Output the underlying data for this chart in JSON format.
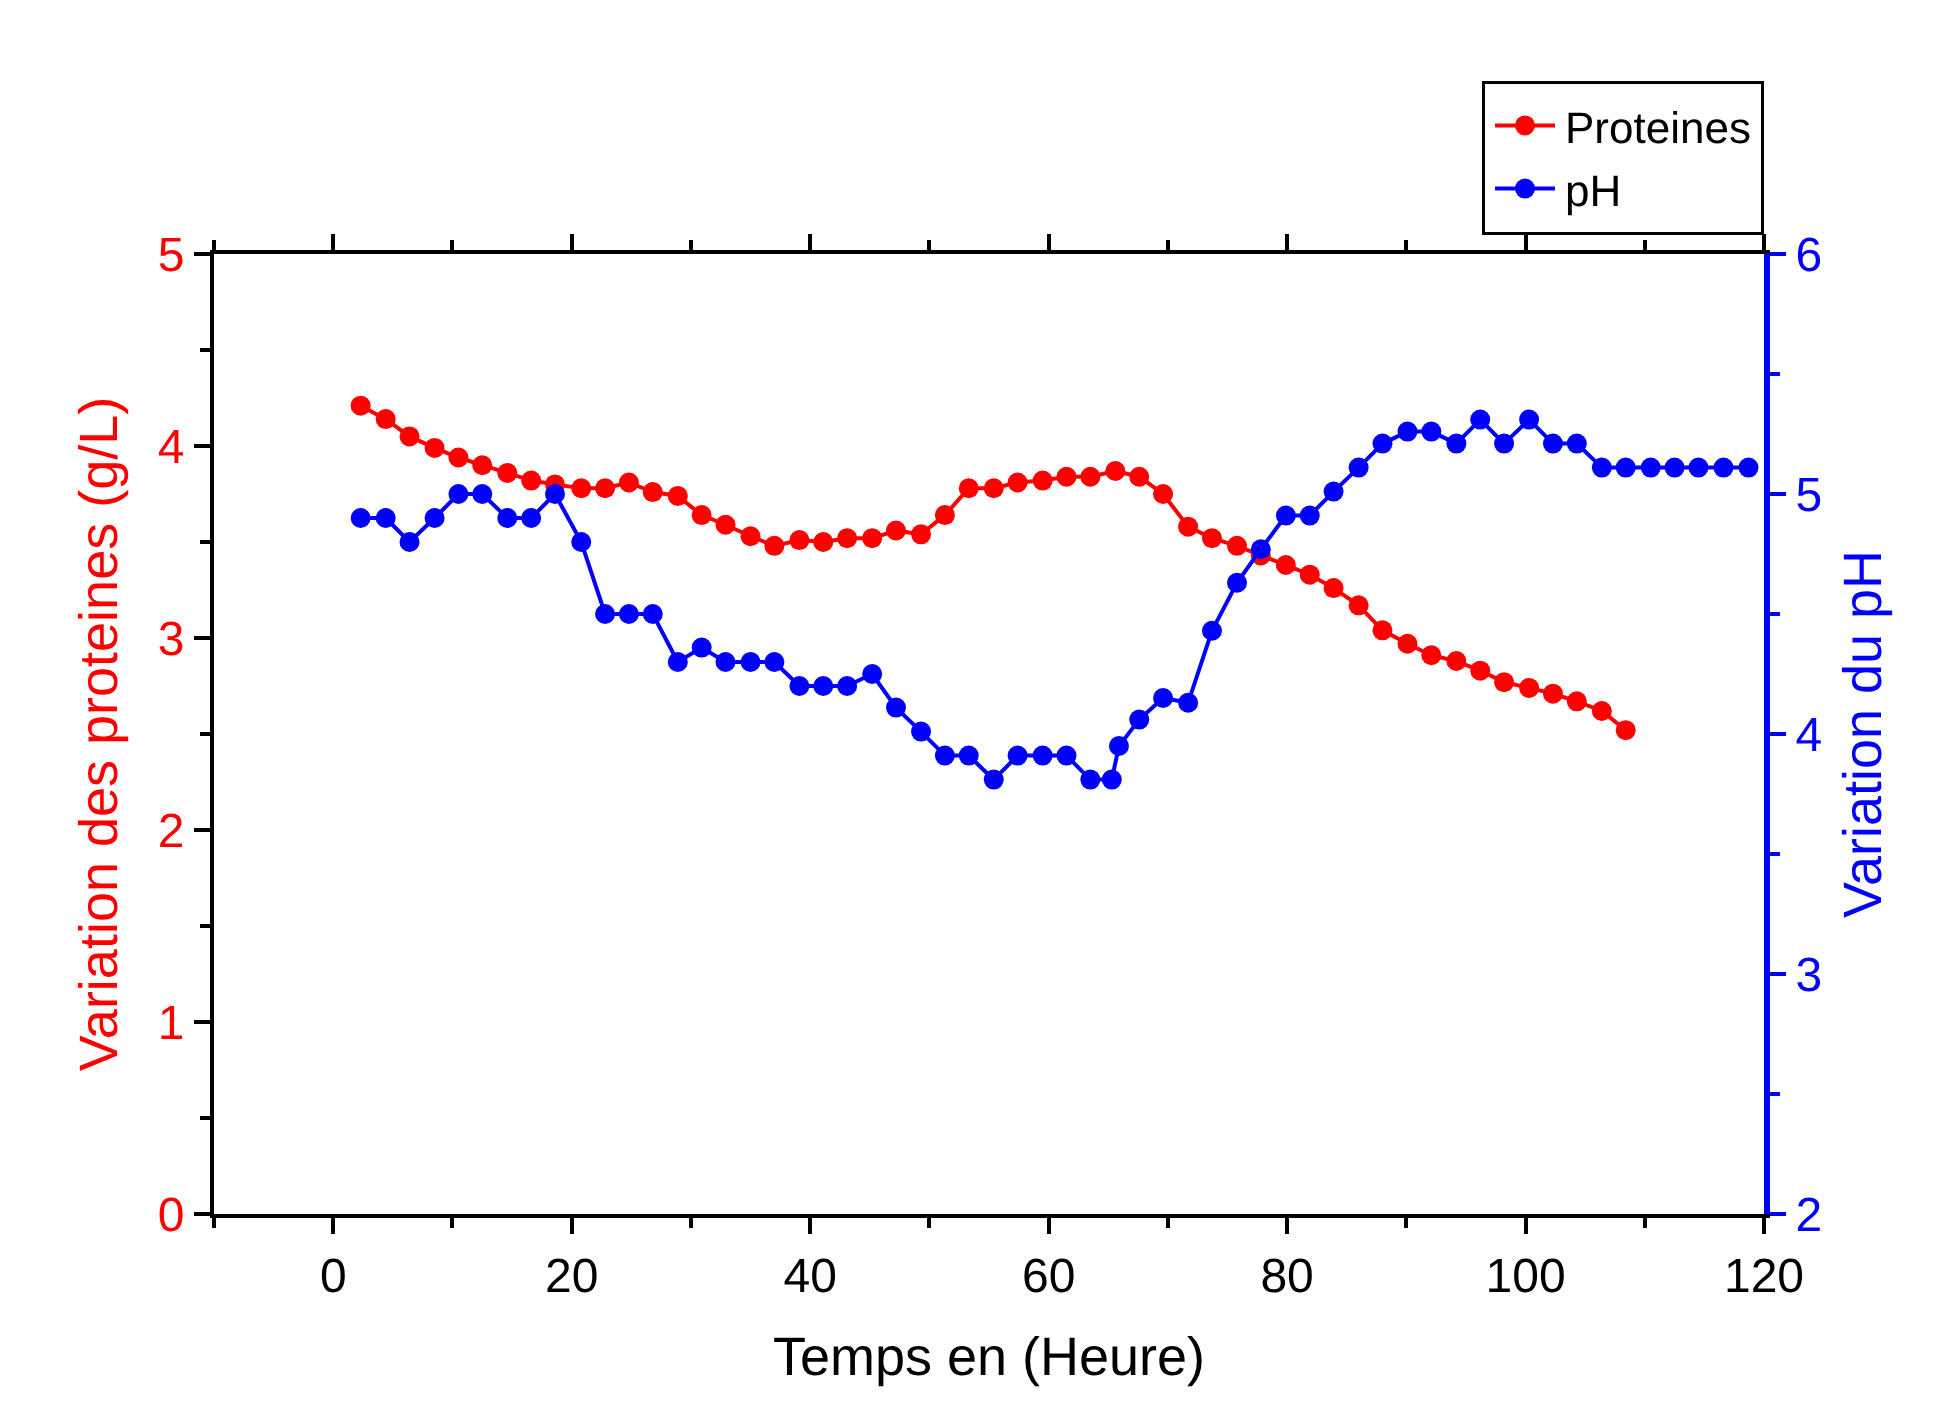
{
  "chart_data": {
    "type": "line",
    "xlabel": "Temps en (Heure)",
    "ylabel": "Variation des proteines (g/L)",
    "y2label": "Variation du pH",
    "xlim": [
      -10,
      120
    ],
    "xticks": [
      0,
      20,
      40,
      60,
      80,
      100,
      120
    ],
    "ylim": [
      0,
      5
    ],
    "yticks": [
      0,
      1,
      2,
      3,
      4,
      5
    ],
    "y2lim": [
      2,
      6
    ],
    "y2ticks": [
      2,
      3,
      4,
      5,
      6
    ],
    "legend": "top right",
    "marker": "circle",
    "line_style": "solid",
    "series": [
      {
        "name": "Proteines",
        "color": "#ff0000",
        "x": [
          2.3,
          4.4,
          6.4,
          8.5,
          10.5,
          12.5,
          14.6,
          16.6,
          18.6,
          20.8,
          22.8,
          24.8,
          26.8,
          28.9,
          30.9,
          32.9,
          35.0,
          37.0,
          39.1,
          41.1,
          43.1,
          45.2,
          47.2,
          49.3,
          51.3,
          53.3,
          55.4,
          57.4,
          59.5,
          61.5,
          63.5,
          65.6,
          67.6,
          69.6,
          71.7,
          73.7,
          75.8,
          77.8,
          79.9,
          81.9,
          83.9,
          86.0,
          88.0,
          90.1,
          92.1,
          94.2,
          96.2,
          98.2,
          100.3,
          102.3,
          104.3,
          106.4,
          108.4
        ],
        "values": [
          4.21,
          4.14,
          4.05,
          3.99,
          3.94,
          3.9,
          3.86,
          3.82,
          3.8,
          3.78,
          3.78,
          3.81,
          3.76,
          3.74,
          3.64,
          3.59,
          3.53,
          3.48,
          3.51,
          3.5,
          3.52,
          3.52,
          3.56,
          3.54,
          3.64,
          3.78,
          3.78,
          3.81,
          3.82,
          3.84,
          3.84,
          3.87,
          3.84,
          3.75,
          3.58,
          3.52,
          3.48,
          3.43,
          3.38,
          3.33,
          3.26,
          3.17,
          3.04,
          2.97,
          2.91,
          2.88,
          2.83,
          2.77,
          2.74,
          2.71,
          2.67,
          2.62,
          2.52
        ]
      },
      {
        "name": "pH",
        "color": "#0000ff",
        "axis": "y2",
        "x": [
          2.3,
          4.4,
          6.4,
          8.5,
          10.5,
          12.5,
          14.6,
          16.6,
          18.6,
          20.8,
          22.8,
          24.8,
          26.8,
          28.9,
          30.9,
          32.9,
          35.0,
          37.0,
          39.1,
          41.1,
          43.1,
          45.2,
          47.2,
          49.3,
          51.3,
          53.3,
          55.4,
          57.4,
          59.5,
          61.5,
          63.5,
          65.3,
          65.9,
          67.6,
          69.6,
          71.7,
          73.7,
          75.8,
          77.8,
          79.9,
          81.9,
          83.9,
          86.0,
          88.0,
          90.1,
          92.1,
          94.2,
          96.2,
          98.2,
          100.3,
          102.3,
          104.3,
          106.4,
          108.4,
          110.5,
          112.5,
          114.5,
          116.6,
          118.7
        ],
        "values": [
          4.9,
          4.9,
          4.8,
          4.9,
          5.0,
          5.0,
          4.9,
          4.9,
          5.0,
          4.8,
          4.5,
          4.5,
          4.5,
          4.3,
          4.36,
          4.3,
          4.3,
          4.3,
          4.2,
          4.2,
          4.2,
          4.25,
          4.11,
          4.01,
          3.91,
          3.91,
          3.81,
          3.91,
          3.91,
          3.91,
          3.81,
          3.81,
          3.95,
          4.06,
          4.15,
          4.13,
          4.43,
          4.63,
          4.77,
          4.91,
          4.91,
          5.01,
          5.11,
          5.21,
          5.26,
          5.26,
          5.21,
          5.31,
          5.21,
          5.31,
          5.21,
          5.21,
          5.11,
          5.11,
          5.11,
          5.11,
          5.11,
          5.11,
          5.11
        ]
      }
    ]
  }
}
